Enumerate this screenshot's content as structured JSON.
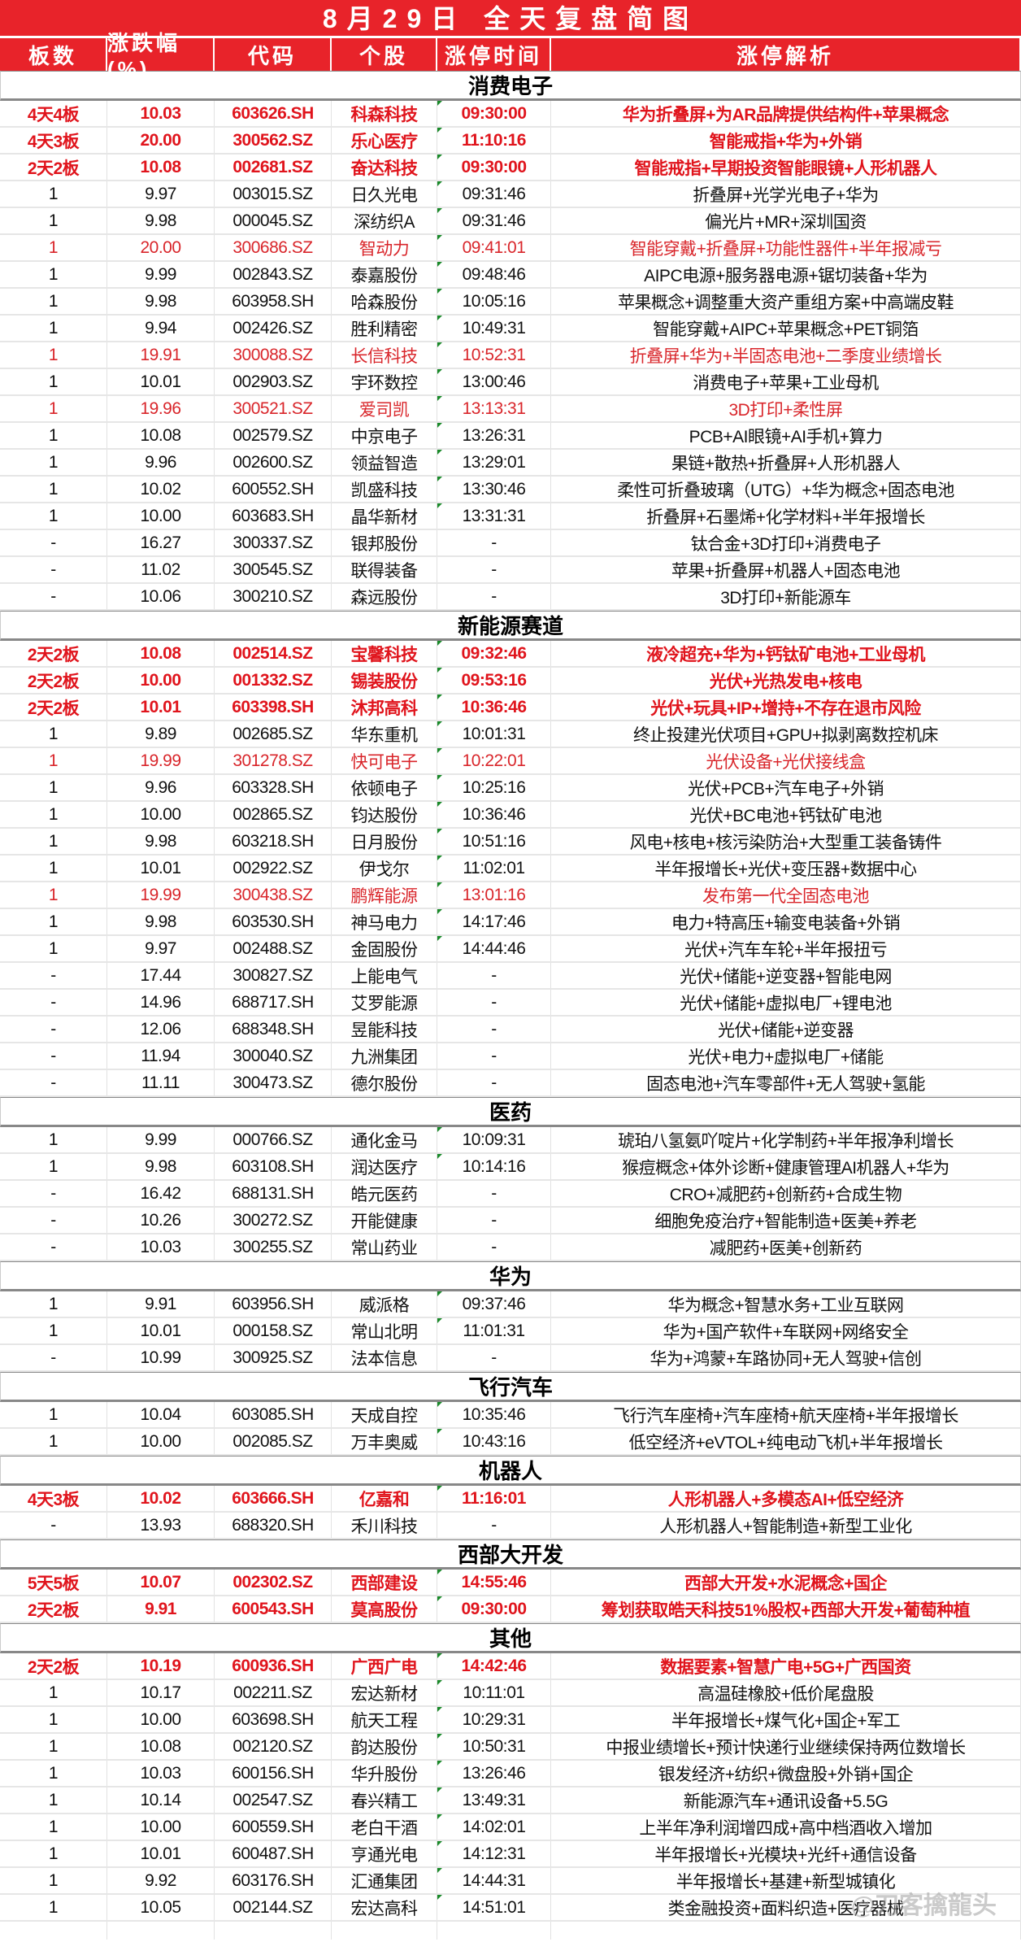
{
  "title": "8月29日 全天复盘简图",
  "headers": [
    "板数",
    "涨跌幅(%)",
    "代码",
    "个股",
    "涨停时间",
    "涨停解析"
  ],
  "watermark": "@刀客擒龍头",
  "colors": {
    "header_bg": "#e8232a",
    "highlight_red": "#e0141c",
    "red": "#d9262b"
  },
  "sections": [
    {
      "name": "消费电子",
      "rows": [
        [
          "4天4板",
          "10.03",
          "603626.SH",
          "科森科技",
          "09:30:00",
          "华为折叠屏+为AR品牌提供结构件+苹果概念",
          "bold"
        ],
        [
          "4天3板",
          "20.00",
          "300562.SZ",
          "乐心医疗",
          "11:10:16",
          "智能戒指+华为+外销",
          "bold"
        ],
        [
          "2天2板",
          "10.08",
          "002681.SZ",
          "奋达科技",
          "09:30:00",
          "智能戒指+早期投资智能眼镜+人形机器人",
          "bold"
        ],
        [
          "1",
          "9.97",
          "003015.SZ",
          "日久光电",
          "09:31:46",
          "折叠屏+光学光电子+华为",
          "normal"
        ],
        [
          "1",
          "9.98",
          "000045.SZ",
          "深纺织A",
          "09:31:46",
          "偏光片+MR+深圳国资",
          "normal"
        ],
        [
          "1",
          "20.00",
          "300686.SZ",
          "智动力",
          "09:41:01",
          "智能穿戴+折叠屏+功能性器件+半年报减亏",
          "red"
        ],
        [
          "1",
          "9.99",
          "002843.SZ",
          "泰嘉股份",
          "09:48:46",
          "AIPC电源+服务器电源+锯切装备+华为",
          "normal"
        ],
        [
          "1",
          "9.98",
          "603958.SH",
          "哈森股份",
          "10:05:16",
          "苹果概念+调整重大资产重组方案+中高端皮鞋",
          "normal"
        ],
        [
          "1",
          "9.94",
          "002426.SZ",
          "胜利精密",
          "10:49:31",
          "智能穿戴+AIPC+苹果概念+PET铜箔",
          "normal"
        ],
        [
          "1",
          "19.91",
          "300088.SZ",
          "长信科技",
          "10:52:31",
          "折叠屏+华为+半固态电池+二季度业绩增长",
          "red"
        ],
        [
          "1",
          "10.01",
          "002903.SZ",
          "宇环数控",
          "13:00:46",
          "消费电子+苹果+工业母机",
          "normal"
        ],
        [
          "1",
          "19.96",
          "300521.SZ",
          "爱司凯",
          "13:13:31",
          "3D打印+柔性屏",
          "red"
        ],
        [
          "1",
          "10.08",
          "002579.SZ",
          "中京电子",
          "13:26:31",
          "PCB+AI眼镜+AI手机+算力",
          "normal"
        ],
        [
          "1",
          "9.96",
          "002600.SZ",
          "领益智造",
          "13:29:01",
          "果链+散热+折叠屏+人形机器人",
          "normal"
        ],
        [
          "1",
          "10.02",
          "600552.SH",
          "凯盛科技",
          "13:30:46",
          "柔性可折叠玻璃（UTG）+华为概念+固态电池",
          "normal"
        ],
        [
          "1",
          "10.00",
          "603683.SH",
          "晶华新材",
          "13:31:31",
          "折叠屏+石墨烯+化学材料+半年报增长",
          "normal"
        ],
        [
          "-",
          "16.27",
          "300337.SZ",
          "银邦股份",
          "-",
          "钛合金+3D打印+消费电子",
          "normal"
        ],
        [
          "-",
          "11.02",
          "300545.SZ",
          "联得装备",
          "-",
          "苹果+折叠屏+机器人+固态电池",
          "normal"
        ],
        [
          "-",
          "10.06",
          "300210.SZ",
          "森远股份",
          "-",
          "3D打印+新能源车",
          "normal"
        ]
      ]
    },
    {
      "name": "新能源赛道",
      "rows": [
        [
          "2天2板",
          "10.08",
          "002514.SZ",
          "宝馨科技",
          "09:32:46",
          "液冷超充+华为+钙钛矿电池+工业母机",
          "bold"
        ],
        [
          "2天2板",
          "10.00",
          "001332.SZ",
          "锡装股份",
          "09:53:16",
          "光伏+光热发电+核电",
          "bold"
        ],
        [
          "2天2板",
          "10.01",
          "603398.SH",
          "沐邦高科",
          "10:36:46",
          "光伏+玩具+IP+增持+不存在退市风险",
          "bold"
        ],
        [
          "1",
          "9.89",
          "002685.SZ",
          "华东重机",
          "10:01:31",
          "终止投建光伏项目+GPU+拟剥离数控机床",
          "normal"
        ],
        [
          "1",
          "19.99",
          "301278.SZ",
          "快可电子",
          "10:22:01",
          "光伏设备+光伏接线盒",
          "red"
        ],
        [
          "1",
          "9.96",
          "603328.SH",
          "依顿电子",
          "10:25:16",
          "光伏+PCB+汽车电子+外销",
          "normal"
        ],
        [
          "1",
          "10.00",
          "002865.SZ",
          "钧达股份",
          "10:36:46",
          "光伏+BC电池+钙钛矿电池",
          "normal"
        ],
        [
          "1",
          "9.98",
          "603218.SH",
          "日月股份",
          "10:51:16",
          "风电+核电+核污染防治+大型重工装备铸件",
          "normal"
        ],
        [
          "1",
          "10.01",
          "002922.SZ",
          "伊戈尔",
          "11:02:01",
          "半年报增长+光伏+变压器+数据中心",
          "normal"
        ],
        [
          "1",
          "19.99",
          "300438.SZ",
          "鹏辉能源",
          "13:01:16",
          "发布第一代全固态电池",
          "red"
        ],
        [
          "1",
          "9.98",
          "603530.SH",
          "神马电力",
          "14:17:46",
          "电力+特高压+输变电装备+外销",
          "normal"
        ],
        [
          "1",
          "9.97",
          "002488.SZ",
          "金固股份",
          "14:44:46",
          "光伏+汽车车轮+半年报扭亏",
          "normal"
        ],
        [
          "-",
          "17.44",
          "300827.SZ",
          "上能电气",
          "-",
          "光伏+储能+逆变器+智能电网",
          "normal"
        ],
        [
          "-",
          "14.96",
          "688717.SH",
          "艾罗能源",
          "-",
          "光伏+储能+虚拟电厂+锂电池",
          "normal"
        ],
        [
          "-",
          "12.06",
          "688348.SH",
          "昱能科技",
          "-",
          "光伏+储能+逆变器",
          "normal"
        ],
        [
          "-",
          "11.94",
          "300040.SZ",
          "九洲集团",
          "-",
          "光伏+电力+虚拟电厂+储能",
          "normal"
        ],
        [
          "-",
          "11.11",
          "300473.SZ",
          "德尔股份",
          "-",
          "固态电池+汽车零部件+无人驾驶+氢能",
          "normal"
        ]
      ]
    },
    {
      "name": "医药",
      "rows": [
        [
          "1",
          "9.99",
          "000766.SZ",
          "通化金马",
          "10:09:31",
          "琥珀八氢氨吖啶片+化学制药+半年报净利增长",
          "normal"
        ],
        [
          "1",
          "9.98",
          "603108.SH",
          "润达医疗",
          "10:14:16",
          "猴痘概念+体外诊断+健康管理AI机器人+华为",
          "normal"
        ],
        [
          "-",
          "16.42",
          "688131.SH",
          "皓元医药",
          "-",
          "CRO+减肥药+创新药+合成生物",
          "normal"
        ],
        [
          "-",
          "10.26",
          "300272.SZ",
          "开能健康",
          "-",
          "细胞免疫治疗+智能制造+医美+养老",
          "normal"
        ],
        [
          "-",
          "10.03",
          "300255.SZ",
          "常山药业",
          "-",
          "减肥药+医美+创新药",
          "normal"
        ]
      ]
    },
    {
      "name": "华为",
      "rows": [
        [
          "1",
          "9.91",
          "603956.SH",
          "威派格",
          "09:37:46",
          "华为概念+智慧水务+工业互联网",
          "normal"
        ],
        [
          "1",
          "10.01",
          "000158.SZ",
          "常山北明",
          "11:01:31",
          "华为+国产软件+车联网+网络安全",
          "normal"
        ],
        [
          "-",
          "10.99",
          "300925.SZ",
          "法本信息",
          "-",
          "华为+鸿蒙+车路协同+无人驾驶+信创",
          "normal"
        ]
      ]
    },
    {
      "name": "飞行汽车",
      "rows": [
        [
          "1",
          "10.04",
          "603085.SH",
          "天成自控",
          "10:35:46",
          "飞行汽车座椅+汽车座椅+航天座椅+半年报增长",
          "normal"
        ],
        [
          "1",
          "10.00",
          "002085.SZ",
          "万丰奥威",
          "10:43:16",
          "低空经济+eVTOL+纯电动飞机+半年报增长",
          "normal"
        ]
      ]
    },
    {
      "name": "机器人",
      "rows": [
        [
          "4天3板",
          "10.02",
          "603666.SH",
          "亿嘉和",
          "11:16:01",
          "人形机器人+多模态AI+低空经济",
          "bold"
        ],
        [
          "-",
          "13.93",
          "688320.SH",
          "禾川科技",
          "-",
          "人形机器人+智能制造+新型工业化",
          "normal"
        ]
      ]
    },
    {
      "name": "西部大开发",
      "rows": [
        [
          "5天5板",
          "10.07",
          "002302.SZ",
          "西部建设",
          "14:55:46",
          "西部大开发+水泥概念+国企",
          "bold"
        ],
        [
          "2天2板",
          "9.91",
          "600543.SH",
          "莫高股份",
          "09:30:00",
          "筹划获取皓天科技51%股权+西部大开发+葡萄种植",
          "bold"
        ]
      ]
    },
    {
      "name": "其他",
      "rows": [
        [
          "2天2板",
          "10.19",
          "600936.SH",
          "广西广电",
          "14:42:46",
          "数据要素+智慧广电+5G+广西国资",
          "bold"
        ],
        [
          "1",
          "10.17",
          "002211.SZ",
          "宏达新材",
          "10:11:01",
          "高温硅橡胶+低价尾盘股",
          "normal"
        ],
        [
          "1",
          "10.00",
          "603698.SH",
          "航天工程",
          "10:29:31",
          "半年报增长+煤气化+国企+军工",
          "normal"
        ],
        [
          "1",
          "10.08",
          "002120.SZ",
          "韵达股份",
          "10:50:31",
          "中报业绩增长+预计快递行业继续保持两位数增长",
          "normal"
        ],
        [
          "1",
          "10.03",
          "600156.SH",
          "华升股份",
          "13:26:46",
          "银发经济+纺织+微盘股+外销+国企",
          "normal"
        ],
        [
          "1",
          "10.14",
          "002547.SZ",
          "春兴精工",
          "13:49:31",
          "新能源汽车+通讯设备+5.5G",
          "normal"
        ],
        [
          "1",
          "10.00",
          "600559.SH",
          "老白干酒",
          "14:02:01",
          "上半年净利润增四成+高中档酒收入增加",
          "normal"
        ],
        [
          "1",
          "10.01",
          "600487.SH",
          "亨通光电",
          "14:12:31",
          "半年报增长+光模块+光纤+通信设备",
          "normal"
        ],
        [
          "1",
          "9.92",
          "603176.SH",
          "汇通集团",
          "14:44:31",
          "半年报增长+基建+新型城镇化",
          "normal"
        ],
        [
          "1",
          "10.05",
          "002144.SZ",
          "宏达高科",
          "14:51:01",
          "类金融投资+面料织造+医疗器械",
          "normal"
        ]
      ]
    }
  ]
}
